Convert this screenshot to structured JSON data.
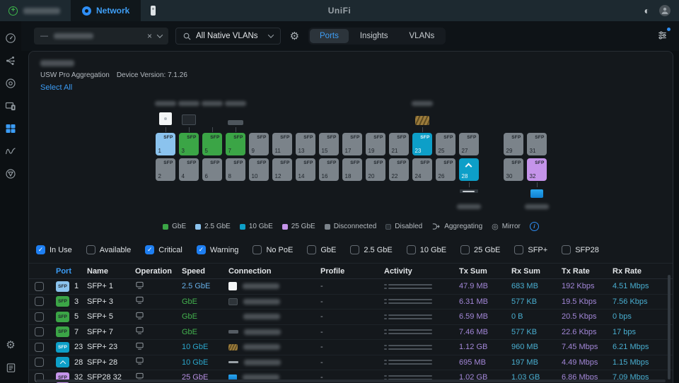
{
  "topbar": {
    "brand": "UniFi",
    "network_tab_label": "Network"
  },
  "icons": {
    "gear": "⚙",
    "theme": "◐",
    "mirror": "◎",
    "info": "i",
    "clear": "×",
    "dash": "—",
    "check": "✓",
    "plus": "+"
  },
  "toolbar": {
    "vlan_select": {
      "value": "All Native VLANs"
    },
    "tabs": [
      {
        "label": "Ports",
        "active": true
      },
      {
        "label": "Insights",
        "active": false
      },
      {
        "label": "VLANs",
        "active": false
      }
    ]
  },
  "device": {
    "model": "USW Pro Aggregation",
    "version": "Device Version: 7.1.26",
    "select_all": "Select All"
  },
  "port_states": {
    "gbe": {
      "color": "#3ba546",
      "text": "#43b24e",
      "label": "GbE"
    },
    "gbe2_5": {
      "color": "#8bc3ee",
      "text": "#66aee6",
      "label": "2.5 GbE"
    },
    "gbe10": {
      "color": "#0d9fc8",
      "text": "#2ba7cd",
      "label": "10 GbE"
    },
    "gbe25": {
      "color": "#c594ea",
      "text": "#b78fe3",
      "label": "25 GbE"
    },
    "off": {
      "color": "#7b838a",
      "text": "#9aa1a7",
      "label": "Disconnected"
    },
    "disabled": {
      "color": "#262c31",
      "text": "#6a7177",
      "label": "Disabled"
    }
  },
  "legend": {
    "aggregating_label": "Aggregating",
    "mirror_label": "Mirror"
  },
  "port_grid": {
    "sfp_label": "SFP",
    "main_columns": [
      {
        "top": {
          "num": 1,
          "state": "gbe2_5"
        },
        "bottom": {
          "num": 2,
          "state": "off"
        }
      },
      {
        "top": {
          "num": 3,
          "state": "gbe"
        },
        "bottom": {
          "num": 4,
          "state": "off"
        }
      },
      {
        "top": {
          "num": 5,
          "state": "gbe"
        },
        "bottom": {
          "num": 6,
          "state": "off"
        }
      },
      {
        "top": {
          "num": 7,
          "state": "gbe"
        },
        "bottom": {
          "num": 8,
          "state": "off"
        }
      },
      {
        "top": {
          "num": 9,
          "state": "off"
        },
        "bottom": {
          "num": 10,
          "state": "off"
        }
      },
      {
        "top": {
          "num": 11,
          "state": "off"
        },
        "bottom": {
          "num": 12,
          "state": "off"
        }
      },
      {
        "top": {
          "num": 13,
          "state": "off"
        },
        "bottom": {
          "num": 14,
          "state": "off"
        }
      },
      {
        "top": {
          "num": 15,
          "state": "off"
        },
        "bottom": {
          "num": 16,
          "state": "off"
        }
      },
      {
        "top": {
          "num": 17,
          "state": "off"
        },
        "bottom": {
          "num": 18,
          "state": "off"
        }
      },
      {
        "top": {
          "num": 19,
          "state": "off"
        },
        "bottom": {
          "num": 20,
          "state": "off"
        }
      },
      {
        "top": {
          "num": 21,
          "state": "off"
        },
        "bottom": {
          "num": 22,
          "state": "off"
        }
      },
      {
        "top": {
          "num": 23,
          "state": "gbe10"
        },
        "bottom": {
          "num": 24,
          "state": "off"
        }
      },
      {
        "top": {
          "num": 25,
          "state": "off"
        },
        "bottom": {
          "num": 26,
          "state": "off"
        }
      },
      {
        "top": {
          "num": 27,
          "state": "off"
        },
        "bottom": {
          "num": 28,
          "state": "gbe10",
          "uplink": true
        }
      }
    ],
    "side_columns": [
      {
        "top": {
          "num": 29,
          "state": "off"
        },
        "bottom": {
          "num": 30,
          "state": "off"
        }
      },
      {
        "top": {
          "num": 31,
          "state": "off"
        },
        "bottom": {
          "num": 32,
          "state": "gbe25"
        }
      }
    ],
    "clients_top": [
      {
        "col": 0,
        "style": "white"
      },
      {
        "col": 1,
        "style": "dark"
      },
      {
        "col": 2,
        "style": "stack"
      },
      {
        "col": 3,
        "style": "flat"
      },
      {
        "col": 11,
        "style": "gold"
      }
    ],
    "clients_bottom": [
      {
        "group": "main",
        "col": 13,
        "style": "thin"
      },
      {
        "group": "side",
        "col": 1,
        "style": "blue"
      }
    ]
  },
  "filters": [
    {
      "label": "In Use",
      "checked": true
    },
    {
      "label": "Available",
      "checked": false
    },
    {
      "label": "Critical",
      "checked": true
    },
    {
      "label": "Warning",
      "checked": true
    },
    {
      "label": "No PoE",
      "checked": false
    },
    {
      "label": "GbE",
      "checked": false
    },
    {
      "label": "2.5 GbE",
      "checked": false
    },
    {
      "label": "10 GbE",
      "checked": false
    },
    {
      "label": "25 GbE",
      "checked": false
    },
    {
      "label": "SFP+",
      "checked": false
    },
    {
      "label": "SFP28",
      "checked": false
    }
  ],
  "colors": {
    "tx": "#a387d8",
    "rx": "#49aed0",
    "accent_blue": "#3b9cf5",
    "checkbox_blue": "#1e7ff2"
  },
  "table": {
    "headers": [
      "Port",
      "Name",
      "Operation",
      "Speed",
      "Connection",
      "Profile",
      "Activity",
      "Tx Sum",
      "Rx Sum",
      "Tx Rate",
      "Rx Rate"
    ],
    "rows": [
      {
        "port": "1",
        "state": "gbe2_5",
        "uplink": false,
        "name": "SFP+ 1",
        "speed": "2.5 GbE",
        "conn": "white",
        "profile": "-",
        "tx_sum": "47.9 MB",
        "rx_sum": "683 MB",
        "tx_rate": "192 Kbps",
        "rx_rate": "4.51 Mbps"
      },
      {
        "port": "3",
        "state": "gbe",
        "uplink": false,
        "name": "SFP+ 3",
        "speed": "GbE",
        "conn": "dark",
        "profile": "-",
        "tx_sum": "6.31 MB",
        "rx_sum": "577 KB",
        "tx_rate": "19.5 Kbps",
        "rx_rate": "7.56 Kbps"
      },
      {
        "port": "5",
        "state": "gbe",
        "uplink": false,
        "name": "SFP+ 5",
        "speed": "GbE",
        "conn": "stack",
        "profile": "-",
        "tx_sum": "6.59 MB",
        "rx_sum": "0 B",
        "tx_rate": "20.5 Kbps",
        "rx_rate": "0 bps"
      },
      {
        "port": "7",
        "state": "gbe",
        "uplink": false,
        "name": "SFP+ 7",
        "speed": "GbE",
        "conn": "flat",
        "profile": "-",
        "tx_sum": "7.46 MB",
        "rx_sum": "577 KB",
        "tx_rate": "22.6 Kbps",
        "rx_rate": "17 bps"
      },
      {
        "port": "23",
        "state": "gbe10",
        "uplink": false,
        "name": "SFP+ 23",
        "speed": "10 GbE",
        "conn": "gold",
        "profile": "-",
        "tx_sum": "1.12 GB",
        "rx_sum": "960 MB",
        "tx_rate": "7.45 Mbps",
        "rx_rate": "6.21 Mbps"
      },
      {
        "port": "28",
        "state": "gbe10",
        "uplink": true,
        "name": "SFP+ 28",
        "speed": "10 GbE",
        "conn": "thin",
        "profile": "-",
        "tx_sum": "695 MB",
        "rx_sum": "197 MB",
        "tx_rate": "4.49 Mbps",
        "rx_rate": "1.15 Mbps"
      },
      {
        "port": "32",
        "state": "gbe25",
        "uplink": false,
        "name": "SFP28 32",
        "speed": "25 GbE",
        "conn": "blue",
        "profile": "-",
        "tx_sum": "1.02 GB",
        "rx_sum": "1.03 GB",
        "tx_rate": "6.86 Mbps",
        "rx_rate": "7.09 Mbps"
      }
    ]
  }
}
